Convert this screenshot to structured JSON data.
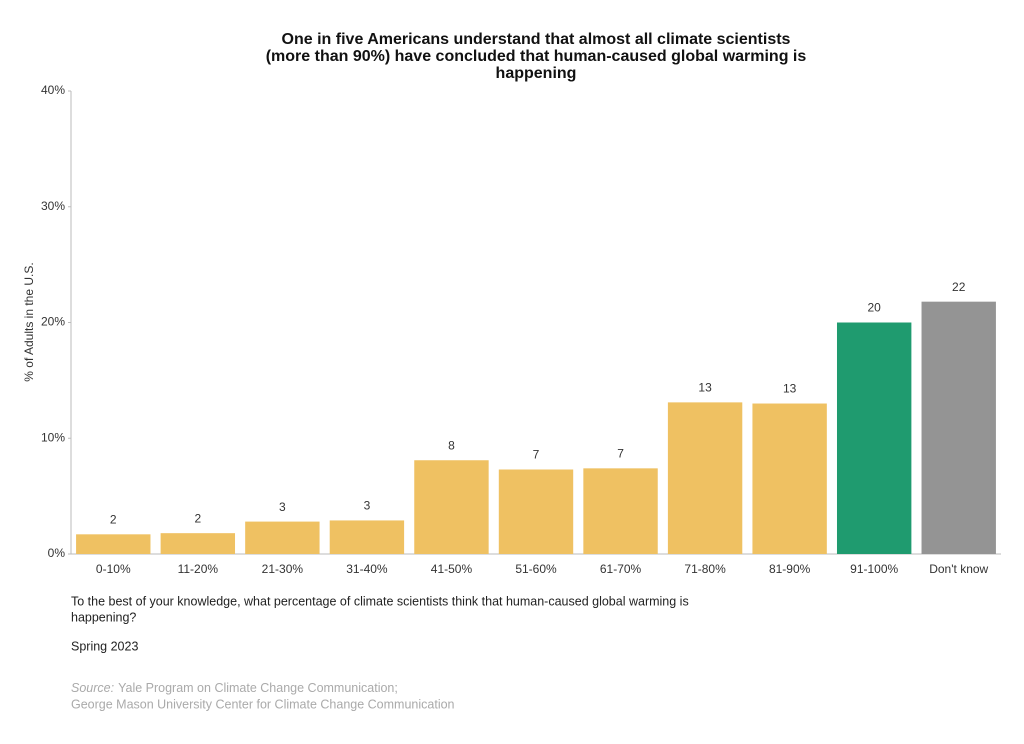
{
  "chart_data": {
    "type": "bar",
    "title": [
      "One in five Americans understand that almost all climate scientists",
      "(more than 90%) have concluded that human-caused global warming is",
      "happening"
    ],
    "y_label": "% of Adults in the U.S.",
    "categories": [
      "0-10%",
      "11-20%",
      "21-30%",
      "31-40%",
      "41-50%",
      "51-60%",
      "61-70%",
      "71-80%",
      "81-90%",
      "91-100%",
      "Don't know"
    ],
    "values": [
      1.7,
      1.8,
      2.8,
      2.9,
      8.1,
      7.3,
      7.4,
      13.1,
      13.0,
      20.0,
      21.8
    ],
    "value_labels": [
      "2",
      "2",
      "3",
      "3",
      "8",
      "7",
      "7",
      "13",
      "13",
      "20",
      "22"
    ],
    "colors": [
      "#efc162",
      "#efc162",
      "#efc162",
      "#efc162",
      "#efc162",
      "#efc162",
      "#efc162",
      "#efc162",
      "#efc162",
      "#1f9b6f",
      "#949494"
    ],
    "ylim": [
      0,
      40
    ],
    "yticks": [
      {
        "value": 0,
        "label": "0%"
      },
      {
        "value": 10,
        "label": "10%"
      },
      {
        "value": 20,
        "label": "20%"
      },
      {
        "value": 30,
        "label": "30%"
      },
      {
        "value": 40,
        "label": "40%"
      }
    ],
    "grid": false,
    "question": [
      "To the best of your knowledge, what percentage of climate scientists think that human-caused global warming is",
      "happening?"
    ],
    "date": "Spring 2023",
    "source_prefix": "Source:",
    "source": [
      "Yale Program on Climate Change Communication;",
      "George Mason University Center for Climate Change Communication"
    ]
  }
}
